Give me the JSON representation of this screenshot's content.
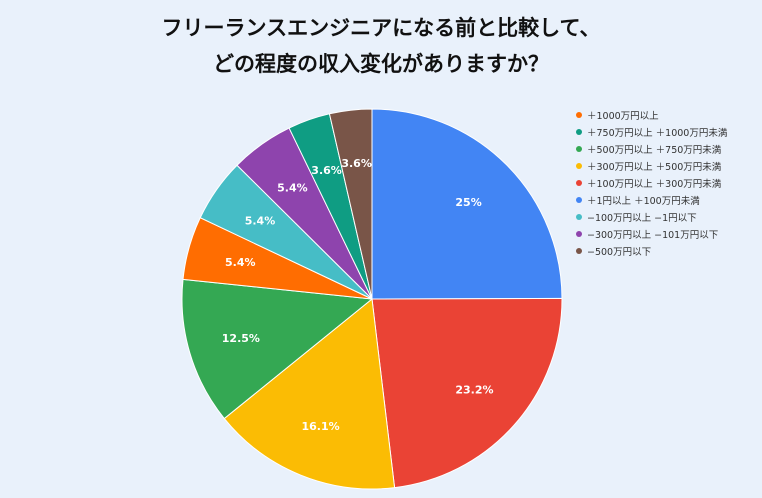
{
  "chart_data": {
    "type": "pie",
    "title_lines": [
      "フリーランスエンジニアになる前と比較して、",
      "どの程度の収入変化がありますか？"
    ],
    "slices": [
      {
        "label": "＋1円以上 ＋100万円未満",
        "value": 25,
        "data_label": "25%",
        "color": "#4285f4"
      },
      {
        "label": "＋100万円以上 ＋300万円未満",
        "value": 23.2,
        "data_label": "23.2%",
        "color": "#ea4335"
      },
      {
        "label": "＋300万円以上 ＋500万円未満",
        "value": 16.1,
        "data_label": "16.1%",
        "color": "#fbbc04"
      },
      {
        "label": "＋500万円以上 ＋750万円未満",
        "value": 12.5,
        "data_label": "12.5%",
        "color": "#34a853"
      },
      {
        "label": "＋1000万円以上",
        "value": 5.4,
        "data_label": "5.4%",
        "color": "#ff6d01"
      },
      {
        "label": "−100万円以上 −1円以下",
        "value": 5.4,
        "data_label": "5.4%",
        "color": "#46bdc6"
      },
      {
        "label": "−300万円以上 −101万円以下",
        "value": 5.4,
        "data_label": "5.4%",
        "color": "#8e44ad"
      },
      {
        "label": "＋750万円以上 ＋1000万円未満",
        "value": 3.6,
        "data_label": "3.6%",
        "color": "#0f9d83"
      },
      {
        "label": "−500万円以下",
        "value": 3.6,
        "data_label": "3.6%",
        "color": "#795548"
      }
    ],
    "legend_order": [
      4,
      7,
      3,
      2,
      1,
      0,
      5,
      6,
      8
    ],
    "legend_position": "right"
  }
}
